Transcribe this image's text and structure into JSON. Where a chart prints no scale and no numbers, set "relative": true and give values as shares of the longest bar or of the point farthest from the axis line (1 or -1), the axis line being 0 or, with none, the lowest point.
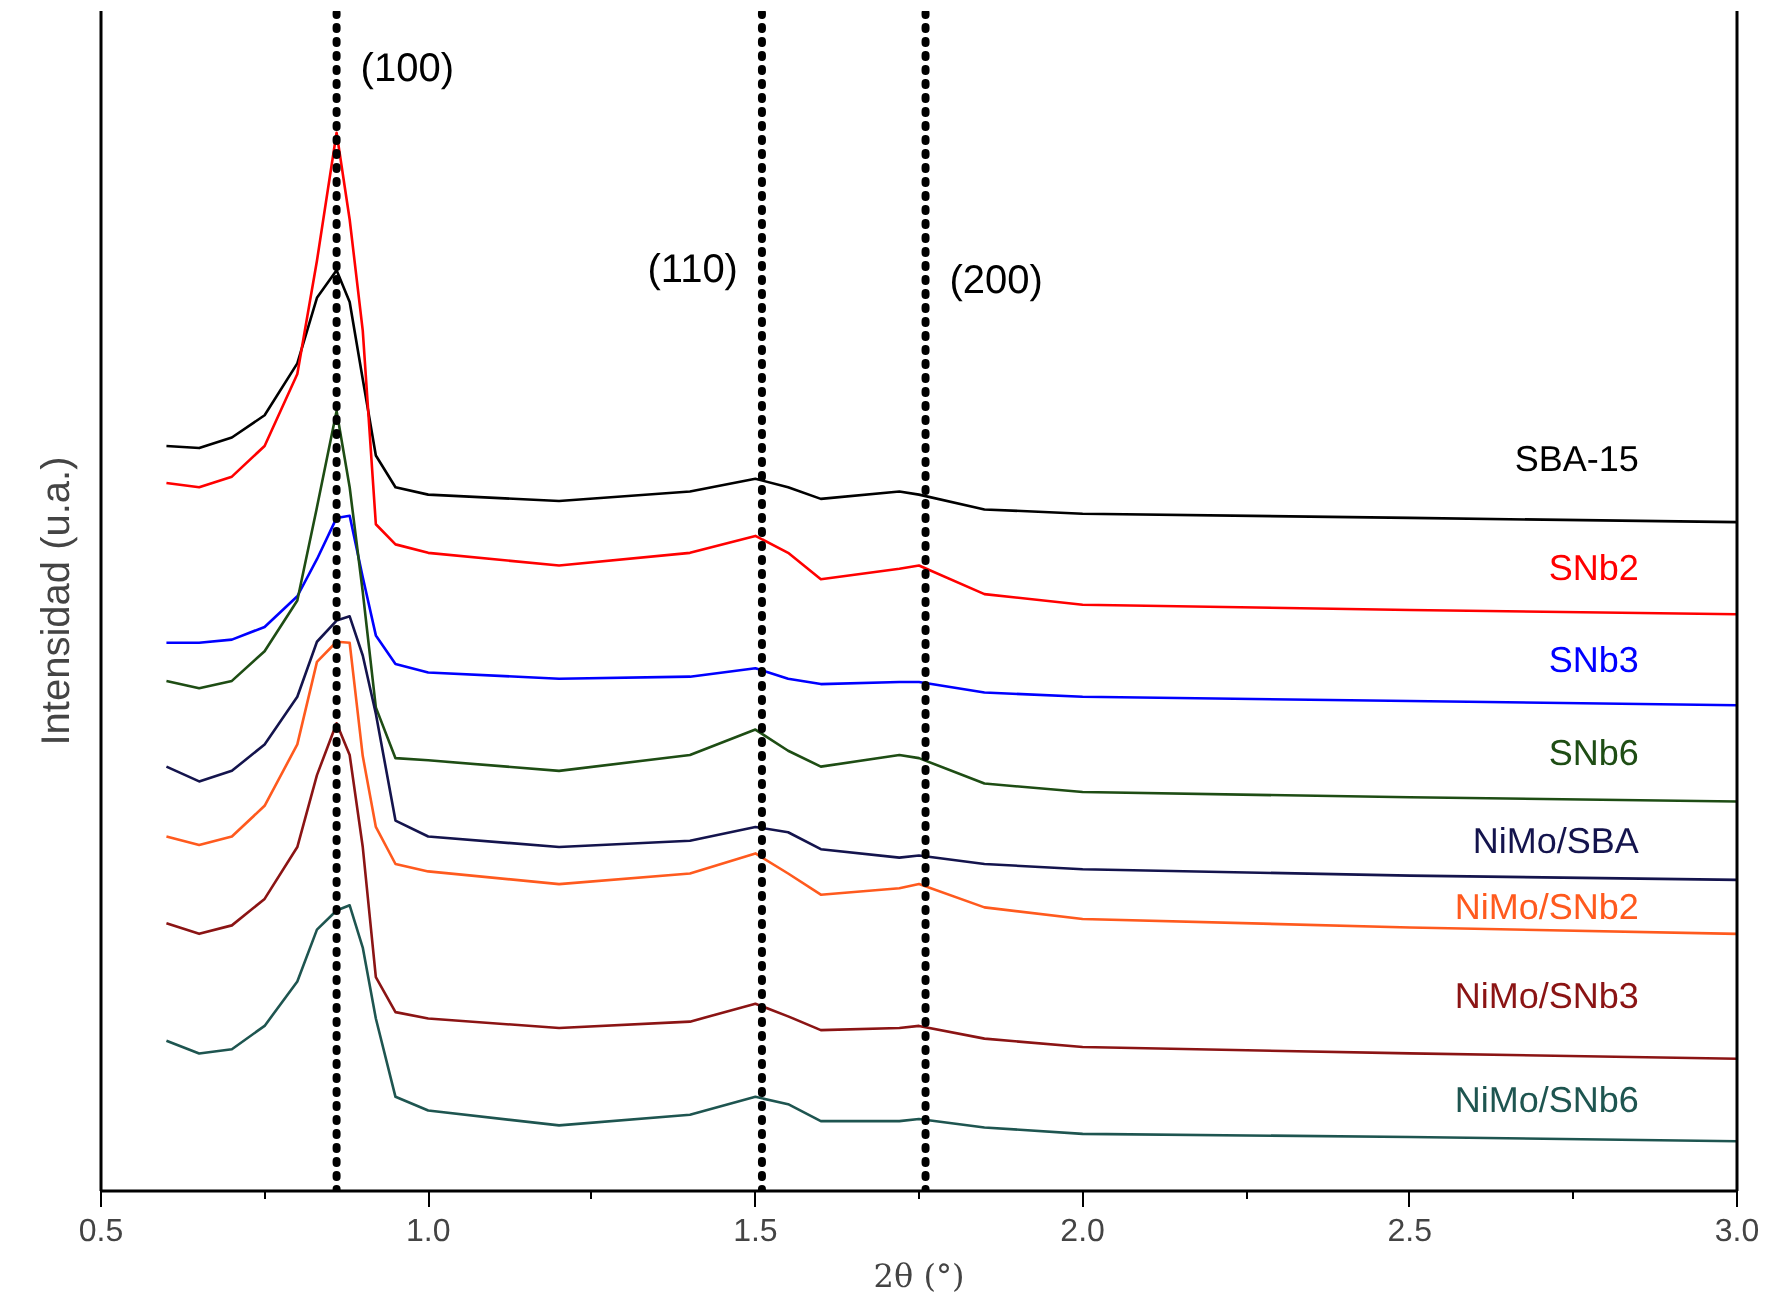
{
  "chart_data": {
    "type": "line",
    "relative": true,
    "xlabel": "2θ (°)",
    "ylabel": "Intensidad (u.a.)",
    "xlim": [
      0.5,
      3.0
    ],
    "xticks": [
      0.5,
      {
        "value": 0.75,
        "label": null
      },
      {
        "value": 1.0,
        "label": "1.0"
      },
      {
        "value": 1.25,
        "label": null
      },
      1.5,
      {
        "value": 1.75,
        "label": null
      },
      {
        "value": 2.0,
        "label": "2.0"
      },
      {
        "value": 2.25,
        "label": null
      },
      2.5,
      {
        "value": 2.75,
        "label": null
      },
      {
        "value": 3.0,
        "label": "3.0"
      }
    ],
    "x": [
      0.6,
      0.65,
      0.7,
      0.75,
      0.8,
      0.83,
      0.86,
      0.88,
      0.9,
      0.92,
      0.95,
      1.0,
      1.2,
      1.4,
      1.5,
      1.55,
      1.6,
      1.72,
      1.75,
      1.85,
      2.0,
      2.5,
      3.0
    ],
    "series": [
      {
        "name": "SBA-15",
        "color": "#000000",
        "values": [
          0.704,
          0.702,
          0.712,
          0.733,
          0.782,
          0.844,
          0.87,
          0.84,
          0.767,
          0.695,
          0.665,
          0.658,
          0.652,
          0.661,
          0.673,
          0.665,
          0.654,
          0.661,
          0.658,
          0.644,
          0.64,
          0.636,
          0.632
        ]
      },
      {
        "name": "SNb2",
        "color": "#ff0000",
        "values": [
          0.669,
          0.665,
          0.675,
          0.704,
          0.772,
          0.879,
          1.0,
          0.918,
          0.813,
          0.63,
          0.611,
          0.603,
          0.591,
          0.603,
          0.619,
          0.603,
          0.578,
          0.588,
          0.591,
          0.564,
          0.554,
          0.549,
          0.545
        ]
      },
      {
        "name": "SNb3",
        "color": "#0000ff",
        "values": [
          0.518,
          0.518,
          0.521,
          0.533,
          0.562,
          0.597,
          0.636,
          0.638,
          0.58,
          0.525,
          0.498,
          0.49,
          0.484,
          0.486,
          0.494,
          0.484,
          0.479,
          0.481,
          0.481,
          0.471,
          0.467,
          0.463,
          0.459
        ]
      },
      {
        "name": "SNb6",
        "color": "#1e4d14",
        "values": [
          0.482,
          0.475,
          0.482,
          0.51,
          0.558,
          0.646,
          0.737,
          0.665,
          0.566,
          0.457,
          0.409,
          0.407,
          0.397,
          0.412,
          0.436,
          0.416,
          0.401,
          0.412,
          0.409,
          0.385,
          0.377,
          0.372,
          0.368
        ]
      },
      {
        "name": "NiMo/SBA",
        "color": "#14144d",
        "values": [
          0.401,
          0.387,
          0.397,
          0.422,
          0.467,
          0.519,
          0.539,
          0.543,
          0.506,
          0.451,
          0.35,
          0.335,
          0.325,
          0.331,
          0.344,
          0.339,
          0.323,
          0.315,
          0.317,
          0.309,
          0.304,
          0.298,
          0.294
        ]
      },
      {
        "name": "NiMo/SNb2",
        "color": "#ff5a1e",
        "values": [
          0.335,
          0.327,
          0.335,
          0.364,
          0.422,
          0.5,
          0.519,
          0.518,
          0.411,
          0.344,
          0.309,
          0.302,
          0.29,
          0.3,
          0.319,
          0.3,
          0.28,
          0.286,
          0.29,
          0.268,
          0.257,
          0.249,
          0.243
        ]
      },
      {
        "name": "NiMo/SNb3",
        "color": "#8b1414",
        "values": [
          0.253,
          0.243,
          0.251,
          0.276,
          0.325,
          0.393,
          0.442,
          0.412,
          0.325,
          0.202,
          0.169,
          0.163,
          0.154,
          0.16,
          0.177,
          0.165,
          0.152,
          0.154,
          0.156,
          0.144,
          0.136,
          0.13,
          0.125
        ]
      },
      {
        "name": "NiMo/SNb6",
        "color": "#1e5550",
        "values": [
          0.142,
          0.13,
          0.134,
          0.156,
          0.198,
          0.247,
          0.265,
          0.27,
          0.23,
          0.163,
          0.089,
          0.076,
          0.062,
          0.072,
          0.089,
          0.082,
          0.066,
          0.066,
          0.068,
          0.06,
          0.054,
          0.051,
          0.047
        ]
      }
    ],
    "ref_lines": [
      {
        "axis": "x",
        "value": 0.86,
        "color": "#000000",
        "line_style": "dotted"
      },
      {
        "axis": "x",
        "value": 1.51,
        "color": "#000000",
        "line_style": "dotted"
      },
      {
        "axis": "x",
        "value": 1.76,
        "color": "#000000",
        "line_style": "dotted"
      }
    ],
    "annotations": [
      {
        "text": "(100)",
        "x": 0.86,
        "y": 1.06
      },
      {
        "text": "(110)",
        "x": 1.51,
        "y": 0.87
      },
      {
        "text": "(200)",
        "x": 1.76,
        "y": 0.86
      }
    ]
  }
}
